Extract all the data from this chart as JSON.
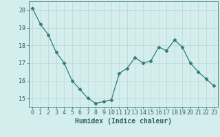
{
  "x_values": [
    0,
    1,
    2,
    3,
    4,
    5,
    6,
    7,
    8,
    9,
    10,
    11,
    12,
    13,
    14,
    15,
    16,
    17,
    18,
    19,
    20,
    21,
    22,
    23
  ],
  "y_values": [
    20.1,
    19.2,
    18.6,
    17.6,
    17.0,
    16.0,
    15.5,
    15.0,
    14.7,
    14.8,
    14.9,
    16.4,
    16.7,
    17.3,
    17.0,
    17.1,
    17.9,
    17.7,
    18.3,
    17.9,
    17.0,
    16.5,
    16.1,
    15.7
  ],
  "line_color": "#2e7d6e",
  "marker": "D",
  "marker_size": 2.5,
  "bg_color": "#d4eeee",
  "grid_color_major": "#c0d8d8",
  "grid_color_minor": "#e0f0f0",
  "xlabel": "Humidex (Indice chaleur)",
  "xlim": [
    -0.5,
    23.5
  ],
  "ylim": [
    14.5,
    20.5
  ],
  "yticks": [
    15,
    16,
    17,
    18,
    19,
    20
  ],
  "xticks": [
    0,
    1,
    2,
    3,
    4,
    5,
    6,
    7,
    8,
    9,
    10,
    11,
    12,
    13,
    14,
    15,
    16,
    17,
    18,
    19,
    20,
    21,
    22,
    23
  ],
  "tick_fontsize": 6,
  "xlabel_fontsize": 7,
  "axis_color": "#2e6060",
  "spine_color": "#4a8080"
}
